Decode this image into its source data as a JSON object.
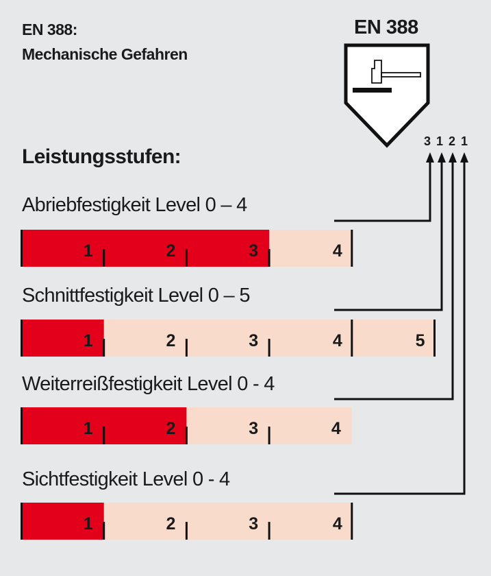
{
  "header": {
    "title_line1": "EN 388:",
    "title_line2": "Mechanische Gefahren",
    "heading": "Leistungsstufen:"
  },
  "badge": {
    "title": "EN 388",
    "icon": "hammer-on-anvil-shield-icon",
    "codes": [
      "3",
      "1",
      "2",
      "1"
    ]
  },
  "colors": {
    "achieved": "#e2001a",
    "not_achieved": "#f9dbcb",
    "background": "#e7e8ea"
  },
  "categories": [
    {
      "label": "Abriebfestigkeit Level 0 – 4",
      "level": 3,
      "max": 4,
      "ticks": [
        "1",
        "2",
        "3",
        "4"
      ]
    },
    {
      "label": "Schnittfestigkeit Level 0 – 5",
      "level": 1,
      "max": 5,
      "ticks": [
        "1",
        "2",
        "3",
        "4",
        "5"
      ]
    },
    {
      "label": "Weiterreißfestigkeit Level 0 - 4",
      "level": 2,
      "max": 4,
      "ticks": [
        "1",
        "2",
        "3",
        "4"
      ]
    },
    {
      "label": "Sichtfestigkeit Level 0 - 4",
      "level": 1,
      "max": 4,
      "ticks": [
        "1",
        "2",
        "3",
        "4"
      ]
    }
  ]
}
